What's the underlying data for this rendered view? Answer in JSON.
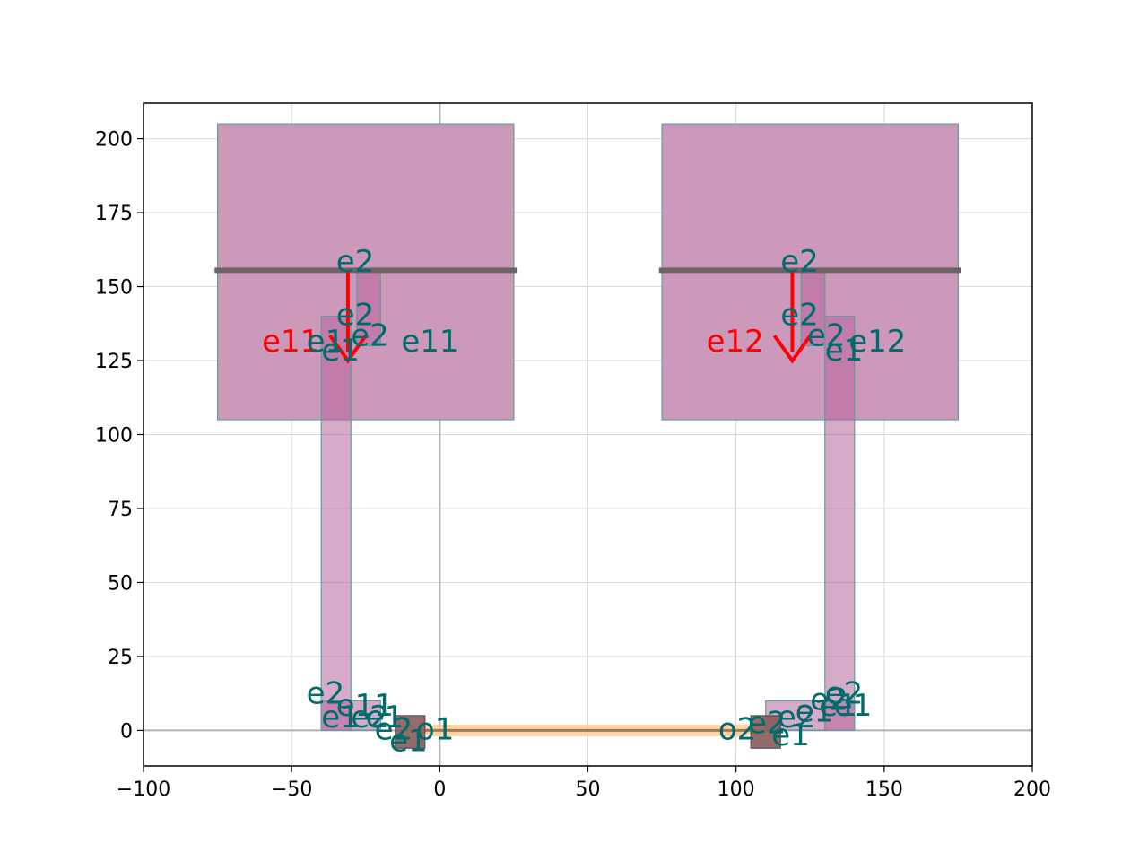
{
  "chart_data": {
    "type": "layout",
    "xlim": [
      -100,
      200
    ],
    "ylim": [
      -12,
      212
    ],
    "xticks": [
      -100,
      -50,
      0,
      50,
      100,
      150,
      200
    ],
    "yticks": [
      0,
      25,
      50,
      75,
      100,
      125,
      150,
      175,
      200
    ],
    "xtick_labels": [
      "−100",
      "−50",
      "0",
      "50",
      "100",
      "150",
      "200"
    ],
    "ytick_labels": [
      "0",
      "25",
      "50",
      "75",
      "100",
      "125",
      "150",
      "175",
      "200"
    ],
    "grid": true,
    "colors": {
      "pad": "#cc99bb",
      "pad_edge": "#5f9ea0",
      "route": "#b8649c",
      "metal_bar": "#6e6466",
      "waveguide_cladding": "#ffc890",
      "waveguide_core": "#9b7a5a",
      "port_label": "#006b6b",
      "highlight_label": "#ff0000"
    },
    "pads": [
      {
        "name": "pad-left",
        "x0": -75,
        "x1": 25,
        "y0": 105,
        "y1": 205
      },
      {
        "name": "pad-right",
        "x0": 75,
        "x1": 175,
        "y0": 105,
        "y1": 205
      }
    ],
    "routes": [
      {
        "name": "route-left-vertical",
        "x0": -40,
        "x1": -30,
        "y0": 0,
        "y1": 140
      },
      {
        "name": "route-left-stub",
        "x0": -40,
        "x1": -20,
        "y0": 0,
        "y1": 10
      },
      {
        "name": "route-left-top",
        "x0": -28,
        "x1": -20,
        "y0": 130,
        "y1": 155
      },
      {
        "name": "route-right-vertical",
        "x0": 130,
        "x1": 140,
        "y0": 0,
        "y1": 140
      },
      {
        "name": "route-right-stub",
        "x0": 110,
        "x1": 140,
        "y0": 0,
        "y1": 10
      },
      {
        "name": "route-right-top",
        "x0": 122,
        "x1": 130,
        "y0": 130,
        "y1": 155
      }
    ],
    "heater_blocks": [
      {
        "name": "heater-left",
        "x0": -15,
        "x1": -5,
        "y0": -6,
        "y1": 5
      },
      {
        "name": "heater-right",
        "x0": 105,
        "x1": 115,
        "y0": -6,
        "y1": 5
      }
    ],
    "metal_bars": [
      {
        "name": "bar-left",
        "x0": -76,
        "x1": 26,
        "y": 155.5
      },
      {
        "name": "bar-right",
        "x0": 74,
        "x1": 176,
        "y": 155.5
      }
    ],
    "waveguide": {
      "x0": -5,
      "x1": 105,
      "y": 0,
      "width": 4
    },
    "axis_lines": {
      "x0": 0,
      "y0": 0
    },
    "labels": [
      {
        "text": "e2",
        "x": -35,
        "y": 155,
        "color": "teal"
      },
      {
        "text": "e2",
        "x": -35,
        "y": 137,
        "color": "teal"
      },
      {
        "text": "e11",
        "x": -60,
        "y": 128,
        "color": "red"
      },
      {
        "text": "e1",
        "x": -45,
        "y": 128,
        "color": "teal"
      },
      {
        "text": "e1",
        "x": -40,
        "y": 125,
        "color": "teal"
      },
      {
        "text": "e2",
        "x": -30,
        "y": 130,
        "color": "teal"
      },
      {
        "text": "e11",
        "x": -13,
        "y": 128,
        "color": "teal"
      },
      {
        "text": "e2",
        "x": 115,
        "y": 155,
        "color": "teal"
      },
      {
        "text": "e2",
        "x": 115,
        "y": 137,
        "color": "teal"
      },
      {
        "text": "e12",
        "x": 90,
        "y": 128,
        "color": "red"
      },
      {
        "text": "e1",
        "x": 130,
        "y": 125,
        "color": "teal"
      },
      {
        "text": "e2",
        "x": 124,
        "y": 130,
        "color": "teal"
      },
      {
        "text": "e12",
        "x": 138,
        "y": 128,
        "color": "teal"
      },
      {
        "text": "e2",
        "x": -45,
        "y": 9,
        "color": "teal"
      },
      {
        "text": "e1",
        "x": -40,
        "y": 1,
        "color": "teal"
      },
      {
        "text": "e11",
        "x": -35,
        "y": 5,
        "color": "teal"
      },
      {
        "text": "e2",
        "x": -30,
        "y": 1,
        "color": "teal"
      },
      {
        "text": "e1",
        "x": -25,
        "y": 1,
        "color": "teal"
      },
      {
        "text": "e2",
        "x": -22,
        "y": -3,
        "color": "teal"
      },
      {
        "text": "e1",
        "x": -17,
        "y": -7,
        "color": "teal"
      },
      {
        "text": "o1",
        "x": -8,
        "y": -3,
        "color": "teal"
      },
      {
        "text": "o2",
        "x": 94,
        "y": -3,
        "color": "teal"
      },
      {
        "text": "e2",
        "x": 104,
        "y": -1,
        "color": "teal"
      },
      {
        "text": "e1",
        "x": 112,
        "y": -5,
        "color": "teal"
      },
      {
        "text": "e2",
        "x": 114,
        "y": 1,
        "color": "teal"
      },
      {
        "text": "e1",
        "x": 120,
        "y": 3,
        "color": "teal"
      },
      {
        "text": "e2",
        "x": 125,
        "y": 7,
        "color": "teal"
      },
      {
        "text": "e1",
        "x": 128,
        "y": 5,
        "color": "teal"
      },
      {
        "text": "e2",
        "x": 130,
        "y": 9,
        "color": "teal"
      },
      {
        "text": "e1",
        "x": 133,
        "y": 5,
        "color": "teal"
      }
    ],
    "arrows": [
      {
        "name": "arrow-left-red",
        "x": -31,
        "y1": 155,
        "y2": 128,
        "color": "red"
      },
      {
        "name": "arrow-right-red",
        "x": 119,
        "y1": 155,
        "y2": 128,
        "color": "red"
      }
    ]
  }
}
